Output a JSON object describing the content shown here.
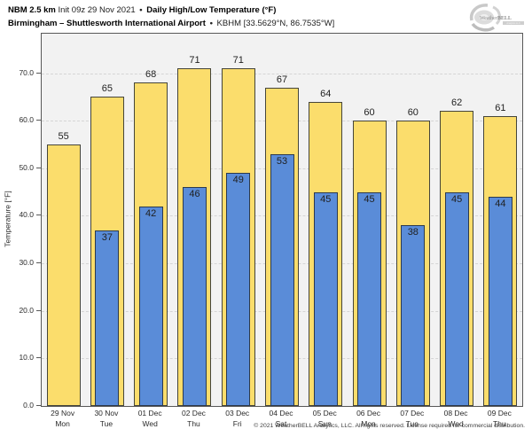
{
  "header": {
    "model": "NBM 2.5 km",
    "init": "Init 09z 29 Nov 2021",
    "separator": "•",
    "product": "Daily High/Low Temperature (°F)",
    "location": "Birmingham – Shuttlesworth International Airport",
    "station": "KBHM [33.5629°N, 86.7535°W]"
  },
  "logo": {
    "text_weather": "Weather",
    "text_bell": "BELL",
    "text_sub": "Analytics LLC"
  },
  "chart_data": {
    "type": "bar",
    "title": "Daily High/Low Temperature (°F)",
    "ylabel": "Temperature [°F]",
    "ylim": [
      0,
      78.3
    ],
    "yticks": [
      "0.0",
      "10.0",
      "20.0",
      "30.0",
      "40.0",
      "50.0",
      "60.0",
      "70.0"
    ],
    "grid": "horizontal-dashed",
    "legend_position": "none",
    "categories": [
      {
        "date": "29 Nov",
        "day": "Mon"
      },
      {
        "date": "30 Nov",
        "day": "Tue"
      },
      {
        "date": "01 Dec",
        "day": "Wed"
      },
      {
        "date": "02 Dec",
        "day": "Thu"
      },
      {
        "date": "03 Dec",
        "day": "Fri"
      },
      {
        "date": "04 Dec",
        "day": "Sat"
      },
      {
        "date": "05 Dec",
        "day": "Sun"
      },
      {
        "date": "06 Dec",
        "day": "Mon"
      },
      {
        "date": "07 Dec",
        "day": "Tue"
      },
      {
        "date": "08 Dec",
        "day": "Wed"
      },
      {
        "date": "09 Dec",
        "day": "Thu"
      }
    ],
    "series": [
      {
        "name": "Daily High",
        "color": "#FBDD6C",
        "values": [
          55,
          65,
          68,
          71,
          71,
          67,
          64,
          60,
          60,
          62,
          61
        ]
      },
      {
        "name": "Daily Low",
        "color": "#5A8CD8",
        "values": [
          null,
          37,
          42,
          46,
          49,
          53,
          45,
          45,
          38,
          45,
          44
        ]
      }
    ]
  },
  "footer": {
    "copyright": "© 2021 WeatherBELL Analytics, LLC. All rights reserved. License required for commercial distribution."
  },
  "colors": {
    "plot_bg": "#f2f2f2",
    "plot_border": "#585858",
    "gridline": "#d5d5d5",
    "high_fill": "#FBDD6C",
    "low_fill": "#5A8CD8",
    "text": "#1a1a1a"
  }
}
